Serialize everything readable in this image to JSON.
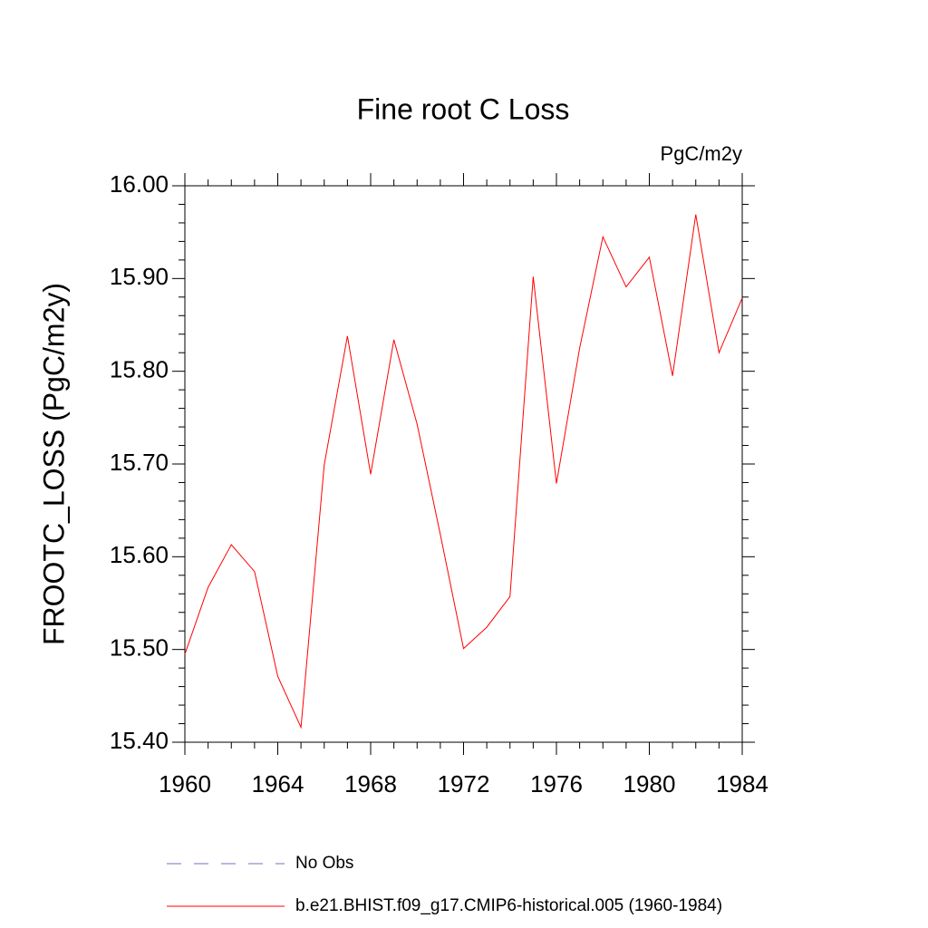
{
  "chart_data": {
    "type": "line",
    "title": "Fine root C Loss",
    "units": "PgC/m2y",
    "y_label": "FROOTC_LOSS  (PgC/m2y)",
    "x": [
      1960,
      1961,
      1962,
      1963,
      1964,
      1965,
      1966,
      1967,
      1968,
      1969,
      1970,
      1971,
      1972,
      1973,
      1974,
      1975,
      1976,
      1977,
      1978,
      1979,
      1980,
      1981,
      1982,
      1983,
      1984
    ],
    "series": [
      {
        "name": "b.e21.BHIST.f09_g17.CMIP6-historical.005 (1960-1984)",
        "color": "#ff0000",
        "values": [
          15.495,
          15.567,
          15.613,
          15.584,
          15.471,
          15.416,
          15.699,
          15.838,
          15.689,
          15.834,
          15.743,
          15.624,
          15.501,
          15.524,
          15.557,
          15.902,
          15.679,
          15.825,
          15.945,
          15.891,
          15.923,
          15.795,
          15.969,
          15.82,
          15.879
        ]
      }
    ],
    "reference": {
      "name": "No Obs",
      "color": "#7070c0",
      "dashed": true
    },
    "xlim": [
      1960,
      1984
    ],
    "xticks": [
      1960,
      1964,
      1968,
      1972,
      1976,
      1980,
      1984
    ],
    "ylim": [
      15.4,
      16.0
    ],
    "yticks": [
      {
        "value": 15.4,
        "label": "15.40"
      },
      {
        "value": 15.5,
        "label": "15.50"
      },
      {
        "value": 15.6,
        "label": "15.60"
      },
      {
        "value": 15.7,
        "label": "15.70"
      },
      {
        "value": 15.8,
        "label": "15.80"
      },
      {
        "value": 15.9,
        "label": "15.90"
      },
      {
        "value": 16.0,
        "label": "16.00"
      }
    ]
  }
}
